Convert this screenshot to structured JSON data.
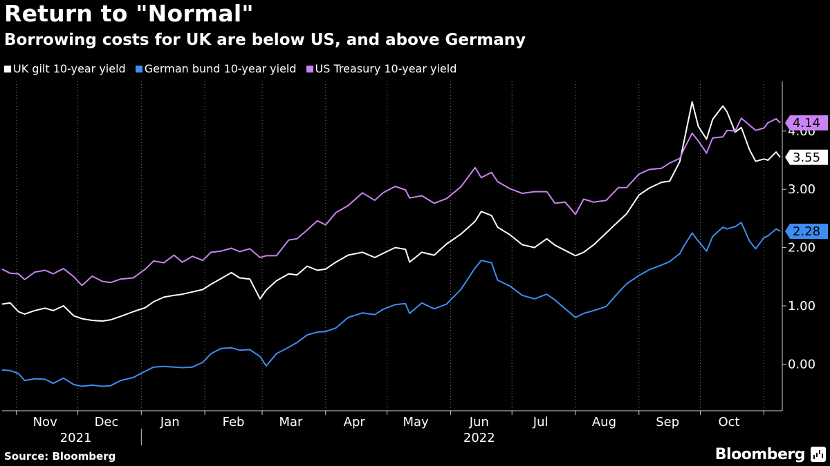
{
  "header": {
    "title": "Return to \"Normal\"",
    "subtitle": "Borrowing costs for UK are below US, and above Germany"
  },
  "legend": [
    {
      "label": "UK gilt 10-year yield",
      "color": "#ffffff"
    },
    {
      "label": "German bund 10-year yield",
      "color": "#3d8ef0"
    },
    {
      "label": "US Treasury 10-year yield",
      "color": "#c983f2"
    }
  ],
  "footer": {
    "source": "Source: Bloomberg",
    "brand": "Bloomberg",
    "brand_icon": "bloomberg-terminal-icon"
  },
  "chart_data": {
    "type": "line",
    "title": "Return to \"Normal\"",
    "subtitle": "Borrowing costs for UK are below US, and above Germany",
    "x_type": "date",
    "x_range": [
      "2021-10-25",
      "2022-11-10"
    ],
    "ylim": [
      -0.8,
      4.85
    ],
    "yticks": [
      0,
      1,
      2,
      3,
      4
    ],
    "ytick_labels": [
      "0.00",
      "1.00",
      "2.00",
      "3.00",
      "4.00"
    ],
    "grid": "vertical dotted at month boundaries",
    "y_axis_position": "right",
    "legend_position": "top-left",
    "x_month_labels": [
      {
        "label": "Nov",
        "date": "2021-11-15"
      },
      {
        "label": "Dec",
        "date": "2021-12-15"
      },
      {
        "label": "Jan",
        "date": "2022-01-15"
      },
      {
        "label": "Feb",
        "date": "2022-02-15"
      },
      {
        "label": "Mar",
        "date": "2022-03-15"
      },
      {
        "label": "Apr",
        "date": "2022-04-15"
      },
      {
        "label": "May",
        "date": "2022-05-15"
      },
      {
        "label": "Jun",
        "date": "2022-06-15"
      },
      {
        "label": "Jul",
        "date": "2022-07-15"
      },
      {
        "label": "Aug",
        "date": "2022-08-15"
      },
      {
        "label": "Sep",
        "date": "2022-09-15"
      },
      {
        "label": "Oct",
        "date": "2022-10-15"
      }
    ],
    "x_month_boundaries": [
      "2021-11-01",
      "2021-12-01",
      "2022-01-01",
      "2022-02-01",
      "2022-03-01",
      "2022-04-01",
      "2022-05-01",
      "2022-06-01",
      "2022-07-01",
      "2022-08-01",
      "2022-09-01",
      "2022-10-01",
      "2022-11-01"
    ],
    "x_year_labels": [
      {
        "label": "2021",
        "date": "2021-11-30"
      },
      {
        "label": "2022",
        "date": "2022-06-15"
      }
    ],
    "year_divider": "2022-01-01",
    "series": [
      {
        "name": "UK gilt 10-year yield",
        "color": "#ffffff",
        "end_label": "3.55",
        "points": [
          [
            "2021-10-25",
            1.03
          ],
          [
            "2021-10-29",
            1.05
          ],
          [
            "2021-11-02",
            0.9
          ],
          [
            "2021-11-05",
            0.86
          ],
          [
            "2021-11-10",
            0.92
          ],
          [
            "2021-11-15",
            0.96
          ],
          [
            "2021-11-19",
            0.92
          ],
          [
            "2021-11-24",
            1.0
          ],
          [
            "2021-11-29",
            0.83
          ],
          [
            "2021-12-03",
            0.78
          ],
          [
            "2021-12-08",
            0.75
          ],
          [
            "2021-12-13",
            0.74
          ],
          [
            "2021-12-17",
            0.76
          ],
          [
            "2021-12-22",
            0.82
          ],
          [
            "2021-12-28",
            0.9
          ],
          [
            "2022-01-03",
            0.97
          ],
          [
            "2022-01-07",
            1.07
          ],
          [
            "2022-01-12",
            1.15
          ],
          [
            "2022-01-17",
            1.18
          ],
          [
            "2022-01-21",
            1.2
          ],
          [
            "2022-01-26",
            1.24
          ],
          [
            "2022-01-31",
            1.28
          ],
          [
            "2022-02-04",
            1.37
          ],
          [
            "2022-02-09",
            1.47
          ],
          [
            "2022-02-14",
            1.57
          ],
          [
            "2022-02-18",
            1.48
          ],
          [
            "2022-02-23",
            1.46
          ],
          [
            "2022-02-28",
            1.12
          ],
          [
            "2022-03-03",
            1.27
          ],
          [
            "2022-03-08",
            1.43
          ],
          [
            "2022-03-14",
            1.55
          ],
          [
            "2022-03-18",
            1.53
          ],
          [
            "2022-03-23",
            1.68
          ],
          [
            "2022-03-28",
            1.61
          ],
          [
            "2022-04-01",
            1.63
          ],
          [
            "2022-04-06",
            1.75
          ],
          [
            "2022-04-12",
            1.87
          ],
          [
            "2022-04-19",
            1.92
          ],
          [
            "2022-04-25",
            1.83
          ],
          [
            "2022-04-29",
            1.9
          ],
          [
            "2022-05-05",
            2.0
          ],
          [
            "2022-05-10",
            1.97
          ],
          [
            "2022-05-12",
            1.75
          ],
          [
            "2022-05-18",
            1.92
          ],
          [
            "2022-05-24",
            1.87
          ],
          [
            "2022-05-30",
            2.06
          ],
          [
            "2022-06-06",
            2.23
          ],
          [
            "2022-06-13",
            2.45
          ],
          [
            "2022-06-16",
            2.62
          ],
          [
            "2022-06-21",
            2.55
          ],
          [
            "2022-06-24",
            2.35
          ],
          [
            "2022-06-30",
            2.22
          ],
          [
            "2022-07-06",
            2.05
          ],
          [
            "2022-07-12",
            2.0
          ],
          [
            "2022-07-18",
            2.15
          ],
          [
            "2022-07-22",
            2.04
          ],
          [
            "2022-07-27",
            1.95
          ],
          [
            "2022-08-01",
            1.86
          ],
          [
            "2022-08-05",
            1.92
          ],
          [
            "2022-08-10",
            2.05
          ],
          [
            "2022-08-16",
            2.25
          ],
          [
            "2022-08-22",
            2.45
          ],
          [
            "2022-08-26",
            2.58
          ],
          [
            "2022-09-01",
            2.9
          ],
          [
            "2022-09-06",
            3.02
          ],
          [
            "2022-09-12",
            3.12
          ],
          [
            "2022-09-16",
            3.14
          ],
          [
            "2022-09-21",
            3.48
          ],
          [
            "2022-09-23",
            3.82
          ],
          [
            "2022-09-27",
            4.5
          ],
          [
            "2022-09-30",
            4.08
          ],
          [
            "2022-10-04",
            3.86
          ],
          [
            "2022-10-07",
            4.2
          ],
          [
            "2022-10-12",
            4.43
          ],
          [
            "2022-10-14",
            4.33
          ],
          [
            "2022-10-18",
            3.98
          ],
          [
            "2022-10-21",
            4.06
          ],
          [
            "2022-10-25",
            3.68
          ],
          [
            "2022-10-28",
            3.48
          ],
          [
            "2022-11-01",
            3.52
          ],
          [
            "2022-11-03",
            3.5
          ],
          [
            "2022-11-07",
            3.64
          ],
          [
            "2022-11-09",
            3.55
          ]
        ]
      },
      {
        "name": "German bund 10-year yield",
        "color": "#3d8ef0",
        "end_label": "2.28",
        "points": [
          [
            "2021-10-25",
            -0.1
          ],
          [
            "2021-10-29",
            -0.11
          ],
          [
            "2021-11-02",
            -0.16
          ],
          [
            "2021-11-05",
            -0.28
          ],
          [
            "2021-11-10",
            -0.25
          ],
          [
            "2021-11-15",
            -0.26
          ],
          [
            "2021-11-19",
            -0.33
          ],
          [
            "2021-11-24",
            -0.24
          ],
          [
            "2021-11-29",
            -0.35
          ],
          [
            "2021-12-03",
            -0.38
          ],
          [
            "2021-12-08",
            -0.36
          ],
          [
            "2021-12-13",
            -0.38
          ],
          [
            "2021-12-17",
            -0.37
          ],
          [
            "2021-12-22",
            -0.28
          ],
          [
            "2021-12-28",
            -0.23
          ],
          [
            "2022-01-03",
            -0.12
          ],
          [
            "2022-01-07",
            -0.05
          ],
          [
            "2022-01-12",
            -0.04
          ],
          [
            "2022-01-17",
            -0.05
          ],
          [
            "2022-01-21",
            -0.06
          ],
          [
            "2022-01-26",
            -0.05
          ],
          [
            "2022-01-31",
            0.03
          ],
          [
            "2022-02-04",
            0.18
          ],
          [
            "2022-02-09",
            0.27
          ],
          [
            "2022-02-14",
            0.28
          ],
          [
            "2022-02-18",
            0.24
          ],
          [
            "2022-02-23",
            0.25
          ],
          [
            "2022-02-28",
            0.13
          ],
          [
            "2022-03-03",
            -0.03
          ],
          [
            "2022-03-08",
            0.18
          ],
          [
            "2022-03-14",
            0.29
          ],
          [
            "2022-03-18",
            0.37
          ],
          [
            "2022-03-23",
            0.5
          ],
          [
            "2022-03-28",
            0.55
          ],
          [
            "2022-04-01",
            0.56
          ],
          [
            "2022-04-06",
            0.62
          ],
          [
            "2022-04-12",
            0.8
          ],
          [
            "2022-04-19",
            0.88
          ],
          [
            "2022-04-25",
            0.85
          ],
          [
            "2022-04-29",
            0.94
          ],
          [
            "2022-05-05",
            1.02
          ],
          [
            "2022-05-10",
            1.04
          ],
          [
            "2022-05-12",
            0.87
          ],
          [
            "2022-05-18",
            1.05
          ],
          [
            "2022-05-24",
            0.95
          ],
          [
            "2022-05-30",
            1.03
          ],
          [
            "2022-06-06",
            1.28
          ],
          [
            "2022-06-13",
            1.65
          ],
          [
            "2022-06-16",
            1.78
          ],
          [
            "2022-06-21",
            1.74
          ],
          [
            "2022-06-24",
            1.44
          ],
          [
            "2022-06-30",
            1.34
          ],
          [
            "2022-07-06",
            1.18
          ],
          [
            "2022-07-12",
            1.12
          ],
          [
            "2022-07-18",
            1.2
          ],
          [
            "2022-07-22",
            1.1
          ],
          [
            "2022-07-27",
            0.95
          ],
          [
            "2022-08-01",
            0.8
          ],
          [
            "2022-08-05",
            0.87
          ],
          [
            "2022-08-10",
            0.92
          ],
          [
            "2022-08-16",
            0.99
          ],
          [
            "2022-08-22",
            1.23
          ],
          [
            "2022-08-26",
            1.38
          ],
          [
            "2022-09-01",
            1.52
          ],
          [
            "2022-09-06",
            1.62
          ],
          [
            "2022-09-12",
            1.7
          ],
          [
            "2022-09-16",
            1.76
          ],
          [
            "2022-09-21",
            1.9
          ],
          [
            "2022-09-23",
            2.03
          ],
          [
            "2022-09-27",
            2.25
          ],
          [
            "2022-09-30",
            2.11
          ],
          [
            "2022-10-04",
            1.94
          ],
          [
            "2022-10-07",
            2.19
          ],
          [
            "2022-10-12",
            2.35
          ],
          [
            "2022-10-14",
            2.32
          ],
          [
            "2022-10-18",
            2.36
          ],
          [
            "2022-10-21",
            2.43
          ],
          [
            "2022-10-25",
            2.11
          ],
          [
            "2022-10-28",
            1.98
          ],
          [
            "2022-11-01",
            2.17
          ],
          [
            "2022-11-03",
            2.2
          ],
          [
            "2022-11-07",
            2.32
          ],
          [
            "2022-11-09",
            2.28
          ]
        ]
      },
      {
        "name": "US Treasury 10-year yield",
        "color": "#c983f2",
        "end_label": "4.14",
        "points": [
          [
            "2021-10-25",
            1.63
          ],
          [
            "2021-10-29",
            1.56
          ],
          [
            "2021-11-02",
            1.55
          ],
          [
            "2021-11-05",
            1.45
          ],
          [
            "2021-11-10",
            1.58
          ],
          [
            "2021-11-15",
            1.61
          ],
          [
            "2021-11-19",
            1.55
          ],
          [
            "2021-11-24",
            1.64
          ],
          [
            "2021-11-29",
            1.5
          ],
          [
            "2021-12-03",
            1.35
          ],
          [
            "2021-12-08",
            1.51
          ],
          [
            "2021-12-13",
            1.42
          ],
          [
            "2021-12-17",
            1.4
          ],
          [
            "2021-12-22",
            1.46
          ],
          [
            "2021-12-28",
            1.48
          ],
          [
            "2022-01-03",
            1.63
          ],
          [
            "2022-01-07",
            1.77
          ],
          [
            "2022-01-12",
            1.74
          ],
          [
            "2022-01-17",
            1.87
          ],
          [
            "2022-01-21",
            1.75
          ],
          [
            "2022-01-26",
            1.85
          ],
          [
            "2022-01-31",
            1.78
          ],
          [
            "2022-02-04",
            1.92
          ],
          [
            "2022-02-09",
            1.94
          ],
          [
            "2022-02-14",
            1.99
          ],
          [
            "2022-02-18",
            1.93
          ],
          [
            "2022-02-23",
            1.98
          ],
          [
            "2022-02-28",
            1.83
          ],
          [
            "2022-03-03",
            1.86
          ],
          [
            "2022-03-08",
            1.86
          ],
          [
            "2022-03-14",
            2.13
          ],
          [
            "2022-03-18",
            2.15
          ],
          [
            "2022-03-23",
            2.3
          ],
          [
            "2022-03-28",
            2.46
          ],
          [
            "2022-04-01",
            2.39
          ],
          [
            "2022-04-06",
            2.6
          ],
          [
            "2022-04-12",
            2.72
          ],
          [
            "2022-04-19",
            2.94
          ],
          [
            "2022-04-25",
            2.81
          ],
          [
            "2022-04-29",
            2.94
          ],
          [
            "2022-05-05",
            3.05
          ],
          [
            "2022-05-10",
            2.99
          ],
          [
            "2022-05-12",
            2.85
          ],
          [
            "2022-05-18",
            2.89
          ],
          [
            "2022-05-24",
            2.76
          ],
          [
            "2022-05-30",
            2.84
          ],
          [
            "2022-06-06",
            3.04
          ],
          [
            "2022-06-13",
            3.37
          ],
          [
            "2022-06-16",
            3.2
          ],
          [
            "2022-06-21",
            3.29
          ],
          [
            "2022-06-24",
            3.13
          ],
          [
            "2022-06-30",
            3.01
          ],
          [
            "2022-07-06",
            2.93
          ],
          [
            "2022-07-12",
            2.96
          ],
          [
            "2022-07-18",
            2.96
          ],
          [
            "2022-07-22",
            2.76
          ],
          [
            "2022-07-27",
            2.78
          ],
          [
            "2022-08-01",
            2.57
          ],
          [
            "2022-08-05",
            2.83
          ],
          [
            "2022-08-10",
            2.78
          ],
          [
            "2022-08-16",
            2.81
          ],
          [
            "2022-08-22",
            3.03
          ],
          [
            "2022-08-26",
            3.03
          ],
          [
            "2022-09-01",
            3.26
          ],
          [
            "2022-09-06",
            3.34
          ],
          [
            "2022-09-12",
            3.36
          ],
          [
            "2022-09-16",
            3.45
          ],
          [
            "2022-09-21",
            3.53
          ],
          [
            "2022-09-23",
            3.69
          ],
          [
            "2022-09-27",
            3.96
          ],
          [
            "2022-09-30",
            3.83
          ],
          [
            "2022-10-04",
            3.62
          ],
          [
            "2022-10-07",
            3.88
          ],
          [
            "2022-10-12",
            3.9
          ],
          [
            "2022-10-14",
            4.01
          ],
          [
            "2022-10-18",
            4.0
          ],
          [
            "2022-10-21",
            4.22
          ],
          [
            "2022-10-25",
            4.1
          ],
          [
            "2022-10-28",
            4.01
          ],
          [
            "2022-11-01",
            4.05
          ],
          [
            "2022-11-03",
            4.14
          ],
          [
            "2022-11-07",
            4.21
          ],
          [
            "2022-11-09",
            4.14
          ]
        ]
      }
    ]
  }
}
